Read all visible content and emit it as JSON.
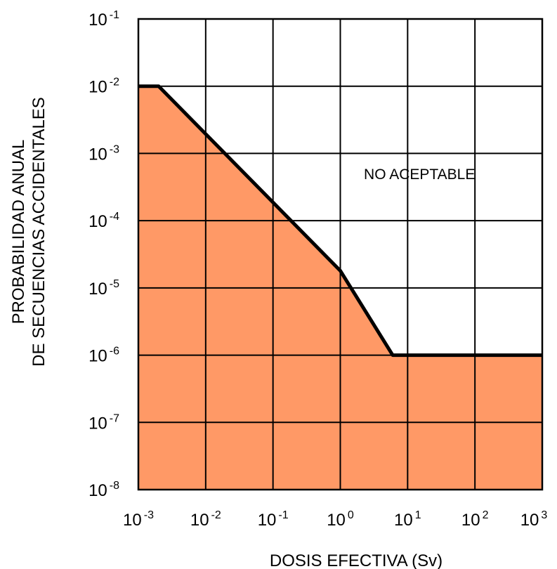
{
  "chart_data": {
    "type": "area",
    "xlabel": "DOSIS EFECTIVA (Sv)",
    "ylabel": [
      "PROBABILIDAD ANUAL",
      "DE SECUENCIAS ACCIDENTALES"
    ],
    "xscale": "log",
    "yscale": "log",
    "xlim": [
      0.001,
      1000
    ],
    "ylim": [
      1e-08,
      0.1
    ],
    "grid": true,
    "x_ticks": [
      {
        "base": "10",
        "exp": "-3",
        "value": 0.001
      },
      {
        "base": "10",
        "exp": "-2",
        "value": 0.01
      },
      {
        "base": "10",
        "exp": "-1",
        "value": 0.1
      },
      {
        "base": "10",
        "exp": "0",
        "value": 1
      },
      {
        "base": "10",
        "exp": "1",
        "value": 10
      },
      {
        "base": "10",
        "exp": "2",
        "value": 100
      },
      {
        "base": "10",
        "exp": "3",
        "value": 1000
      }
    ],
    "y_ticks": [
      {
        "base": "10",
        "exp": "-1",
        "value": 0.1
      },
      {
        "base": "10",
        "exp": "-2",
        "value": 0.01
      },
      {
        "base": "10",
        "exp": "-3",
        "value": 0.001
      },
      {
        "base": "10",
        "exp": "-4",
        "value": 0.0001
      },
      {
        "base": "10",
        "exp": "-5",
        "value": 1e-05
      },
      {
        "base": "10",
        "exp": "-6",
        "value": 1e-06
      },
      {
        "base": "10",
        "exp": "-7",
        "value": 1e-07
      },
      {
        "base": "10",
        "exp": "-8",
        "value": 1e-08
      }
    ],
    "series": [
      {
        "x": [
          0.001,
          0.002,
          1,
          6,
          1000
        ],
        "y": [
          0.01,
          0.01,
          1.8e-05,
          1e-06,
          1e-06
        ]
      }
    ],
    "fill_color": "#FF9966",
    "line_color": "#000000",
    "annotations": [
      {
        "text": "NO ACEPTABLE",
        "x": 15,
        "y": 0.0005
      }
    ]
  }
}
